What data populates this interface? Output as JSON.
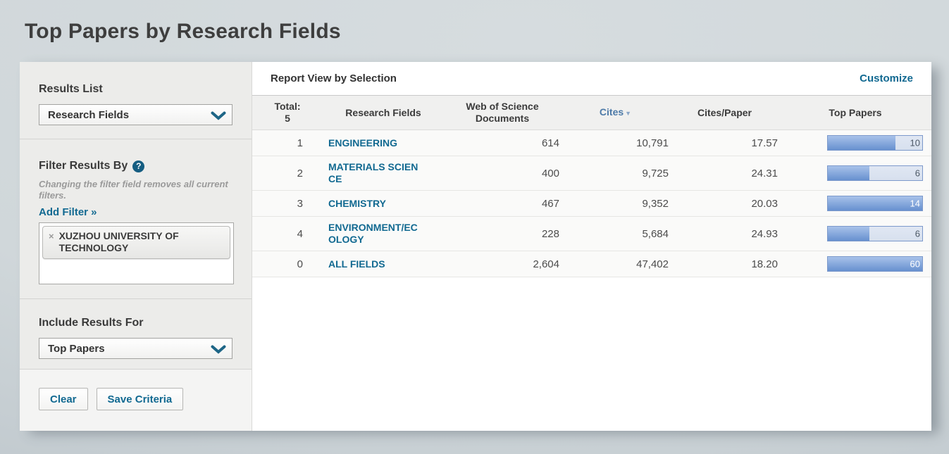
{
  "page": {
    "title": "Top Papers by Research Fields"
  },
  "sidebar": {
    "results_list": {
      "label": "Results List",
      "selected": "Research Fields"
    },
    "filter": {
      "heading": "Filter Results By",
      "help_icon": "?",
      "note": "Changing the filter field removes all current filters.",
      "add_filter_label": "Add Filter »",
      "chips": [
        {
          "remove_icon": "×",
          "label": "XUZHOU UNIVERSITY OF TECHNOLOGY"
        }
      ]
    },
    "include_results": {
      "label": "Include Results For",
      "selected": "Top Papers"
    },
    "actions": {
      "clear_label": "Clear",
      "save_label": "Save Criteria"
    }
  },
  "report": {
    "header": "Report View by Selection",
    "customize_label": "Customize",
    "table": {
      "headers": {
        "total_label": "Total:",
        "total_count": "5",
        "research_fields": "Research Fields",
        "documents": "Web of Science Documents",
        "cites": "Cites",
        "cites_sort_icon": "▼",
        "cites_per_paper": "Cites/Paper",
        "top_papers": "Top Papers"
      },
      "sorted_by": "Cites",
      "rows": [
        {
          "rank": "1",
          "field": "ENGINEERING",
          "docs": "614",
          "cites": "10,791",
          "cites_per_paper": "17.57",
          "top_papers": "10",
          "bar_pct": 72
        },
        {
          "rank": "2",
          "field": "MATERIALS SCIENCE",
          "docs": "400",
          "cites": "9,725",
          "cites_per_paper": "24.31",
          "top_papers": "6",
          "bar_pct": 44
        },
        {
          "rank": "3",
          "field": "CHEMISTRY",
          "docs": "467",
          "cites": "9,352",
          "cites_per_paper": "20.03",
          "top_papers": "14",
          "bar_pct": 100
        },
        {
          "rank": "4",
          "field": "ENVIRONMENT/ECOLOGY",
          "docs": "228",
          "cites": "5,684",
          "cites_per_paper": "24.93",
          "top_papers": "6",
          "bar_pct": 44
        },
        {
          "rank": "0",
          "field": "ALL FIELDS",
          "docs": "2,604",
          "cites": "47,402",
          "cites_per_paper": "18.20",
          "top_papers": "60",
          "bar_pct": 100
        }
      ]
    }
  },
  "colors": {
    "link_teal": "#116991",
    "sorted_header_blue": "#4d7aa8",
    "bar_fill": "#6790cf",
    "bar_track": "#dde5f1",
    "bar_border": "#7c99cb",
    "help_icon_bg": "#155d81",
    "page_background": "#d0d7da"
  }
}
